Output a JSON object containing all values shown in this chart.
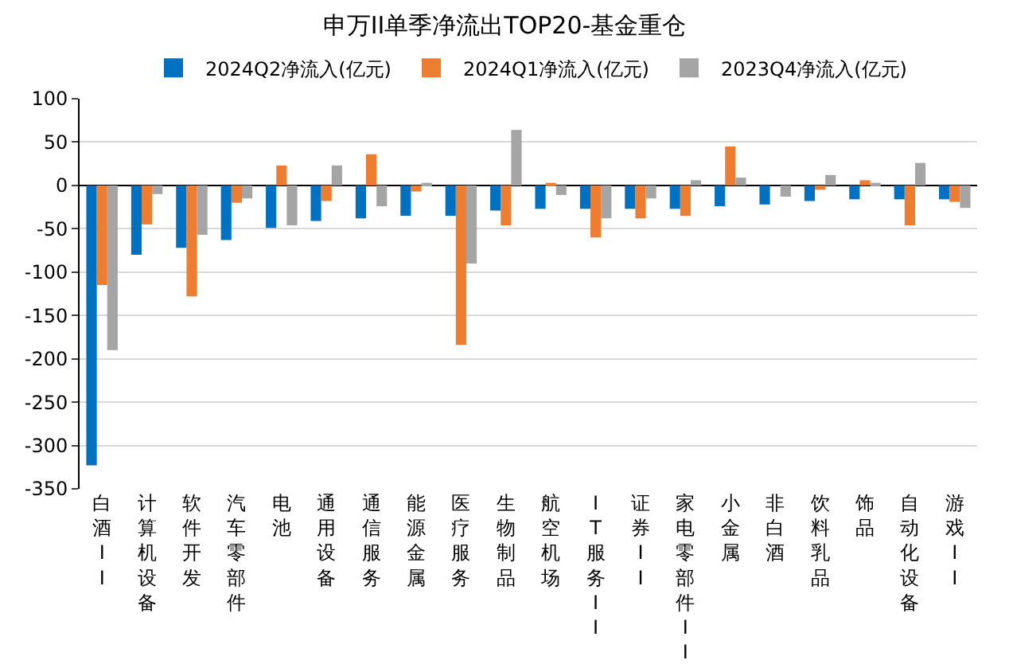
{
  "chart_data": {
    "type": "bar",
    "title": "申万II单季净流出TOP20-基金重仓",
    "categories": [
      "白酒II",
      "计算机设备",
      "软件开发",
      "汽车零部件",
      "电池",
      "通用设备",
      "通信服务",
      "能源金属",
      "医疗服务",
      "生物制品",
      "航空机场",
      "IT服务II",
      "证券II",
      "家电零部件II",
      "小金属",
      "非白酒",
      "饮料乳品",
      "饰品",
      "自动化设备",
      "游戏II"
    ],
    "series": [
      {
        "name": "2024Q2净流入(亿元)",
        "color": "#0070c0",
        "values": [
          -323,
          -80,
          -72,
          -63,
          -49,
          -41,
          -38,
          -35,
          -35,
          -29,
          -27,
          -27,
          -27,
          -27,
          -24,
          -22,
          -18,
          -16,
          -16,
          -16
        ]
      },
      {
        "name": "2024Q1净流入(亿元)",
        "color": "#ed7d31",
        "values": [
          -115,
          -45,
          -128,
          -20,
          23,
          -18,
          36,
          -7,
          -184,
          -46,
          3,
          -60,
          -38,
          -35,
          45,
          0,
          -5,
          6,
          -46,
          -19
        ]
      },
      {
        "name": "2023Q4净流入(亿元)",
        "color": "#a5a5a5",
        "values": [
          -190,
          -10,
          -57,
          -15,
          -46,
          23,
          -24,
          3,
          -90,
          64,
          -11,
          -38,
          -15,
          6,
          9,
          -13,
          12,
          3,
          26,
          -26
        ]
      }
    ],
    "ylim": [
      -350,
      100
    ],
    "yticks": [
      -350,
      -300,
      -250,
      -200,
      -150,
      -100,
      -50,
      0,
      50,
      100
    ],
    "grid": "y",
    "legend": "top"
  }
}
